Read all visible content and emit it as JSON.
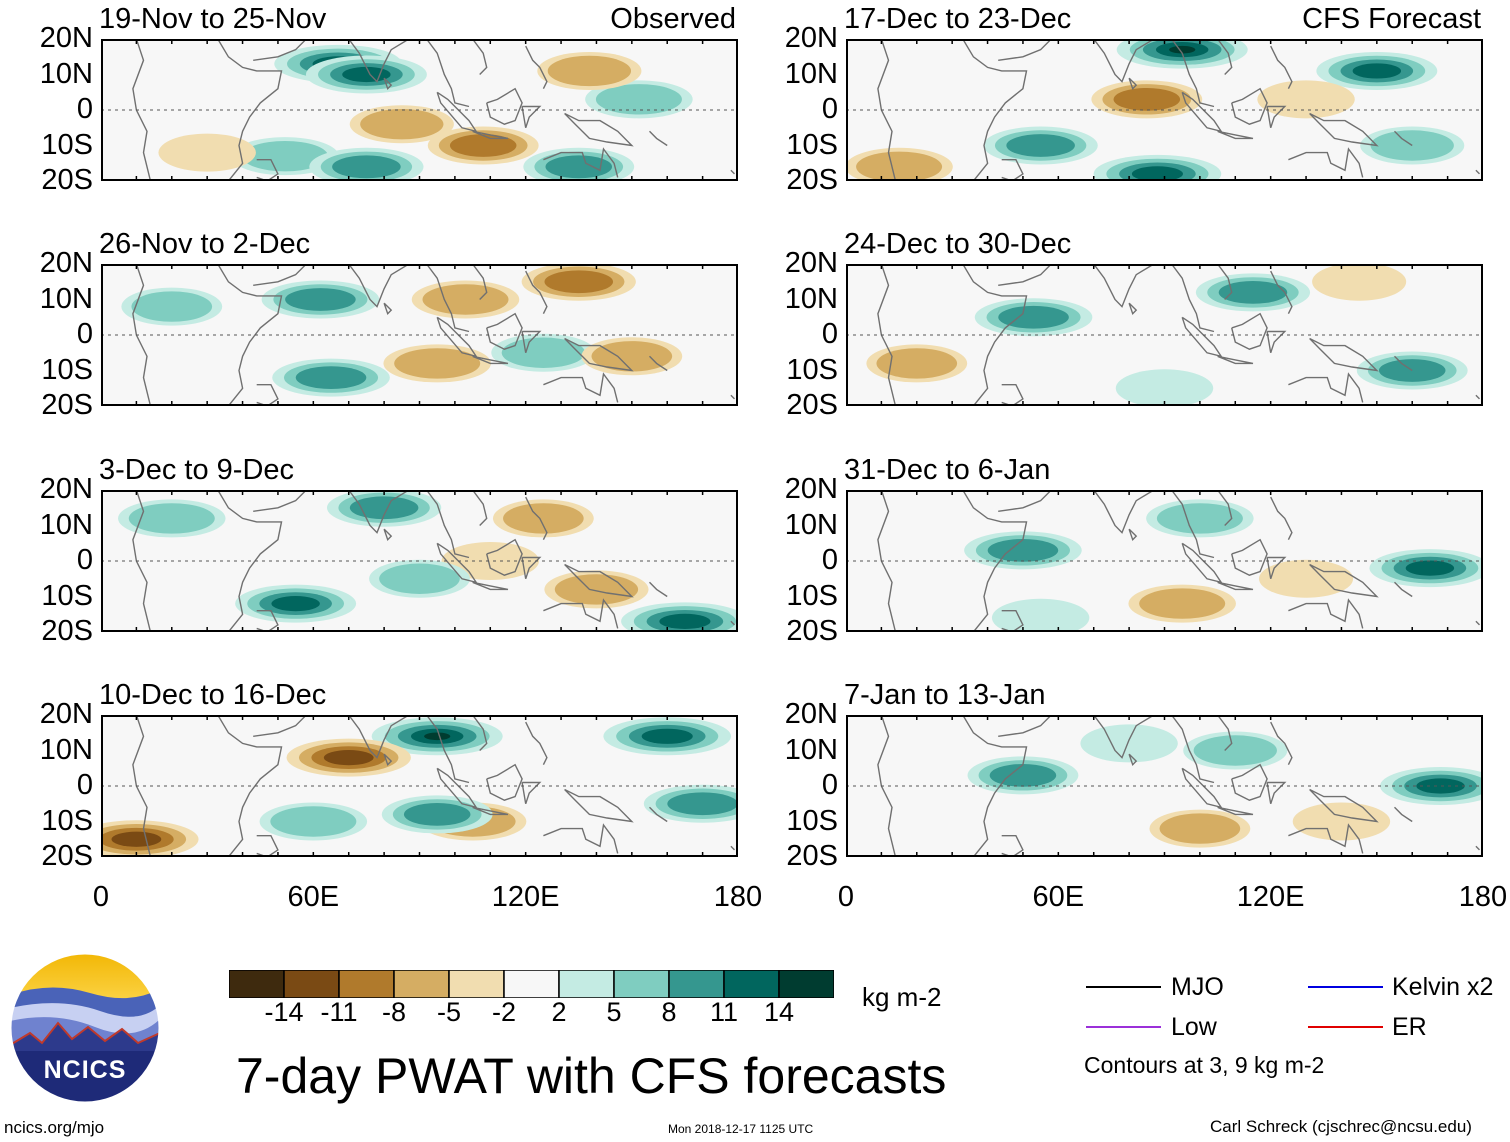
{
  "chart_data": {
    "type": "heatmap",
    "title": "7-day PWAT with CFS forecasts",
    "variable": "precipitable water anomaly",
    "units": "kg m-2",
    "lat_ticks": [
      "20N",
      "10N",
      "0",
      "10S",
      "20S"
    ],
    "lon_ticks": [
      "0",
      "60E",
      "120E",
      "180"
    ],
    "lat_range": [
      -20,
      20
    ],
    "lon_range": [
      0,
      180
    ],
    "observed_label": "Observed",
    "forecast_label": "CFS Forecast",
    "panels": [
      {
        "period": "19-Nov to 25-Nov",
        "source": "Observed",
        "tag": "Observed",
        "blobs": [
          {
            "lon": 67,
            "lat": 13,
            "v": 13
          },
          {
            "lon": 75,
            "lat": 10,
            "v": 11
          },
          {
            "lon": 52,
            "lat": -13,
            "v": 7
          },
          {
            "lon": 75,
            "lat": -16,
            "v": 9
          },
          {
            "lon": 135,
            "lat": -16,
            "v": 8
          },
          {
            "lon": 152,
            "lat": 3,
            "v": 7
          },
          {
            "lon": 138,
            "lat": 11,
            "v": -6
          },
          {
            "lon": 85,
            "lat": -4,
            "v": -6
          },
          {
            "lon": 108,
            "lat": -10,
            "v": -8
          },
          {
            "lon": 30,
            "lat": -12,
            "v": -4
          }
        ]
      },
      {
        "period": "26-Nov to 2-Dec",
        "source": "Observed",
        "tag": "",
        "blobs": [
          {
            "lon": 62,
            "lat": 10,
            "v": 10
          },
          {
            "lon": 65,
            "lat": -12,
            "v": 10
          },
          {
            "lon": 125,
            "lat": -5,
            "v": 6
          },
          {
            "lon": 135,
            "lat": 15,
            "v": -9
          },
          {
            "lon": 103,
            "lat": 10,
            "v": -7
          },
          {
            "lon": 95,
            "lat": -8,
            "v": -7
          },
          {
            "lon": 150,
            "lat": -6,
            "v": -5
          },
          {
            "lon": 20,
            "lat": 8,
            "v": 5
          }
        ]
      },
      {
        "period": "3-Dec to 9-Dec",
        "source": "Observed",
        "tag": "",
        "blobs": [
          {
            "lon": 80,
            "lat": 15,
            "v": 9
          },
          {
            "lon": 55,
            "lat": -12,
            "v": 11
          },
          {
            "lon": 165,
            "lat": -17,
            "v": 13
          },
          {
            "lon": 125,
            "lat": 12,
            "v": -5
          },
          {
            "lon": 140,
            "lat": -8,
            "v": -6
          },
          {
            "lon": 110,
            "lat": 0,
            "v": -4
          },
          {
            "lon": 20,
            "lat": 12,
            "v": 7
          },
          {
            "lon": 90,
            "lat": -5,
            "v": 5
          }
        ]
      },
      {
        "period": "10-Dec to 16-Dec",
        "source": "Observed",
        "tag": "",
        "blobs": [
          {
            "lon": 95,
            "lat": 14,
            "v": 14
          },
          {
            "lon": 160,
            "lat": 14,
            "v": 13
          },
          {
            "lon": 170,
            "lat": -5,
            "v": 10
          },
          {
            "lon": 70,
            "lat": 8,
            "v": -12
          },
          {
            "lon": 10,
            "lat": -15,
            "v": -12
          },
          {
            "lon": 105,
            "lat": -10,
            "v": -7
          },
          {
            "lon": 95,
            "lat": -8,
            "v": 8
          },
          {
            "lon": 60,
            "lat": -10,
            "v": 7
          }
        ]
      },
      {
        "period": "17-Dec to 23-Dec",
        "source": "CFS Forecast",
        "tag": "CFS Forecast",
        "blobs": [
          {
            "lon": 95,
            "lat": 17,
            "v": 14
          },
          {
            "lon": 150,
            "lat": 11,
            "v": 11
          },
          {
            "lon": 88,
            "lat": -18,
            "v": 13
          },
          {
            "lon": 55,
            "lat": -10,
            "v": 9
          },
          {
            "lon": 160,
            "lat": -10,
            "v": 6
          },
          {
            "lon": 130,
            "lat": 3,
            "v": -4
          },
          {
            "lon": 85,
            "lat": 3,
            "v": -8
          },
          {
            "lon": 15,
            "lat": -16,
            "v": -7
          }
        ]
      },
      {
        "period": "24-Dec to 30-Dec",
        "source": "CFS Forecast",
        "tag": "",
        "blobs": [
          {
            "lon": 53,
            "lat": 5,
            "v": 10
          },
          {
            "lon": 115,
            "lat": 12,
            "v": 9
          },
          {
            "lon": 160,
            "lat": -10,
            "v": 8
          },
          {
            "lon": 20,
            "lat": -8,
            "v": -5
          },
          {
            "lon": 145,
            "lat": 15,
            "v": -3
          },
          {
            "lon": 90,
            "lat": -15,
            "v": 4
          }
        ]
      },
      {
        "period": "31-Dec to 6-Jan",
        "source": "CFS Forecast",
        "tag": "",
        "blobs": [
          {
            "lon": 50,
            "lat": 3,
            "v": 10
          },
          {
            "lon": 165,
            "lat": -2,
            "v": 11
          },
          {
            "lon": 100,
            "lat": 12,
            "v": 7
          },
          {
            "lon": 95,
            "lat": -12,
            "v": -7
          },
          {
            "lon": 55,
            "lat": -16,
            "v": 4
          },
          {
            "lon": 130,
            "lat": -5,
            "v": -3
          }
        ]
      },
      {
        "period": "7-Jan to 13-Jan",
        "source": "CFS Forecast",
        "tag": "",
        "blobs": [
          {
            "lon": 168,
            "lat": 0,
            "v": 11
          },
          {
            "lon": 50,
            "lat": 3,
            "v": 8
          },
          {
            "lon": 110,
            "lat": 10,
            "v": 6
          },
          {
            "lon": 100,
            "lat": -12,
            "v": -5
          },
          {
            "lon": 140,
            "lat": -10,
            "v": -4
          },
          {
            "lon": 80,
            "lat": 12,
            "v": 4
          }
        ]
      }
    ],
    "colorbar": {
      "labels": [
        "-14",
        "-11",
        "-8",
        "-5",
        "-2",
        "2",
        "5",
        "8",
        "11",
        "14"
      ],
      "colors": [
        "#3e2a0e",
        "#7a4a14",
        "#b07a2c",
        "#d5ad63",
        "#f1ddb0",
        "#f7f7f7",
        "#c4ebe3",
        "#7fcdc0",
        "#35978f",
        "#01665e",
        "#003c30"
      ],
      "units": "kg m-2"
    },
    "legend": [
      {
        "label": "MJO",
        "color": "#000000"
      },
      {
        "label": "Low",
        "color": "#9b30d9"
      },
      {
        "label": "Kelvin x2",
        "color": "#0000e0"
      },
      {
        "label": "ER",
        "color": "#e00000"
      }
    ],
    "contour_note": "Contours at 3, 9 kg m-2"
  },
  "logo": {
    "text": "NCICS"
  },
  "footer": {
    "url": "ncics.org/mjo",
    "timestamp": "Mon 2018-12-17 1125 UTC",
    "credit": "Carl Schreck (cjschrec@ncsu.edu)"
  }
}
